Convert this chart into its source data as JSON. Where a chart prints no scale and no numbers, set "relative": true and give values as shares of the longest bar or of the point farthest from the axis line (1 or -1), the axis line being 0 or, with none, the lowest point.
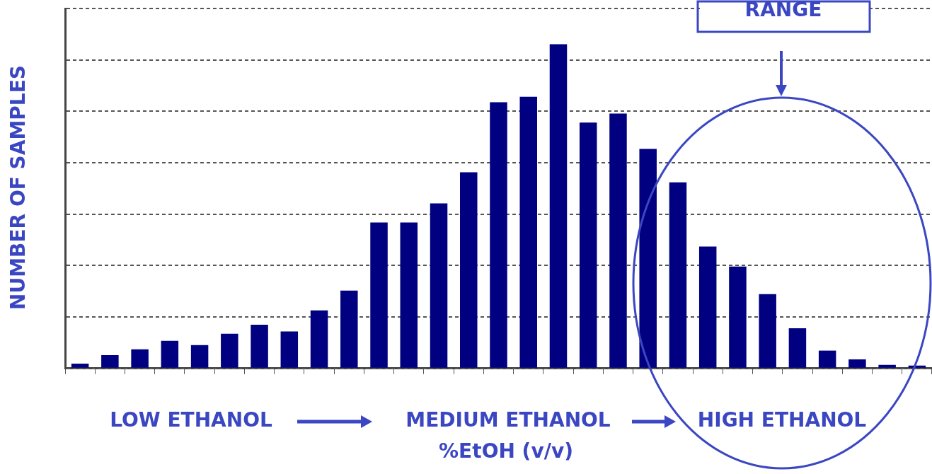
{
  "chart_data": {
    "type": "bar",
    "relative": true,
    "ylabel": "NUMBER OF SAMPLES",
    "xlabel": "%EtOH (v/v)",
    "categories": [
      null,
      null,
      null,
      null,
      null,
      null,
      null,
      null,
      null,
      null,
      null,
      null,
      null,
      null,
      null,
      null,
      null,
      null,
      null,
      null,
      null,
      null,
      null,
      null,
      null,
      null,
      null,
      null,
      null
    ],
    "values": [
      0.015,
      0.041,
      0.059,
      0.085,
      0.072,
      0.107,
      0.135,
      0.114,
      0.179,
      0.24,
      0.45,
      0.45,
      0.509,
      0.605,
      0.821,
      0.838,
      1,
      0.758,
      0.786,
      0.677,
      0.574,
      0.376,
      0.314,
      0.229,
      0.124,
      0.055,
      0.028,
      0.011,
      0.009
    ],
    "color": "#000080",
    "grid": "y",
    "legend": false,
    "annotations": [
      "LOW ETHANOL",
      "MEDIUM ETHANOL",
      "HIGH ETHANOL",
      "RANGE"
    ]
  }
}
